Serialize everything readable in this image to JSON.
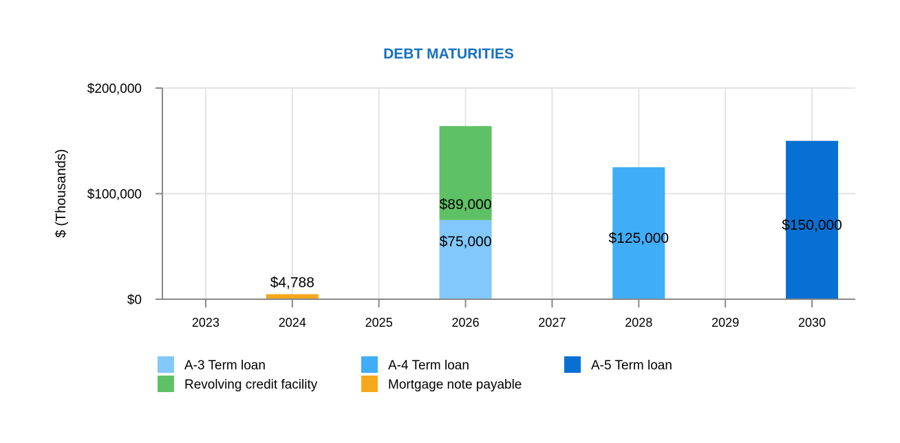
{
  "chart_data": {
    "type": "bar",
    "stacked": true,
    "title": "DEBT MATURITIES",
    "title_color": "#1570c0",
    "xlabel": "",
    "ylabel": "$ (Thousands)",
    "ylim": [
      0,
      200000
    ],
    "yticks": [
      0,
      100000,
      200000
    ],
    "ytick_labels": [
      "$0",
      "$100,000",
      "$200,000"
    ],
    "grid": true,
    "legend_position": "bottom",
    "categories": [
      "2023",
      "2024",
      "2025",
      "2026",
      "2027",
      "2028",
      "2029",
      "2030"
    ],
    "series": [
      {
        "name": "A-3 Term loan",
        "color": "#82c8fb",
        "values": [
          0,
          0,
          0,
          75000,
          0,
          0,
          0,
          0
        ],
        "labels": [
          "",
          "",
          "",
          "$75,000",
          "",
          "",
          "",
          ""
        ]
      },
      {
        "name": "Revolving credit facility",
        "color": "#5fc165",
        "values": [
          0,
          0,
          0,
          89000,
          0,
          0,
          0,
          0
        ],
        "labels": [
          "",
          "",
          "",
          "$89,000",
          "",
          "",
          "",
          ""
        ]
      },
      {
        "name": "A-4 Term loan",
        "color": "#3fadf8",
        "values": [
          0,
          0,
          0,
          0,
          0,
          125000,
          0,
          0
        ],
        "labels": [
          "",
          "",
          "",
          "",
          "",
          "$125,000",
          "",
          ""
        ]
      },
      {
        "name": "Mortgage note payable",
        "color": "#f6a81c",
        "values": [
          0,
          4788,
          0,
          0,
          0,
          0,
          0,
          0
        ],
        "labels": [
          "",
          "$4,788",
          "",
          "",
          "",
          "",
          "",
          ""
        ]
      },
      {
        "name": "A-5 Term loan",
        "color": "#0770d2",
        "values": [
          0,
          0,
          0,
          0,
          0,
          0,
          0,
          150000
        ],
        "labels": [
          "",
          "",
          "",
          "",
          "",
          "",
          "",
          "$150,000"
        ]
      }
    ],
    "legend_order": [
      "A-3 Term loan",
      "A-4 Term loan",
      "A-5 Term loan",
      "Revolving credit facility",
      "Mortgage note payable"
    ]
  }
}
